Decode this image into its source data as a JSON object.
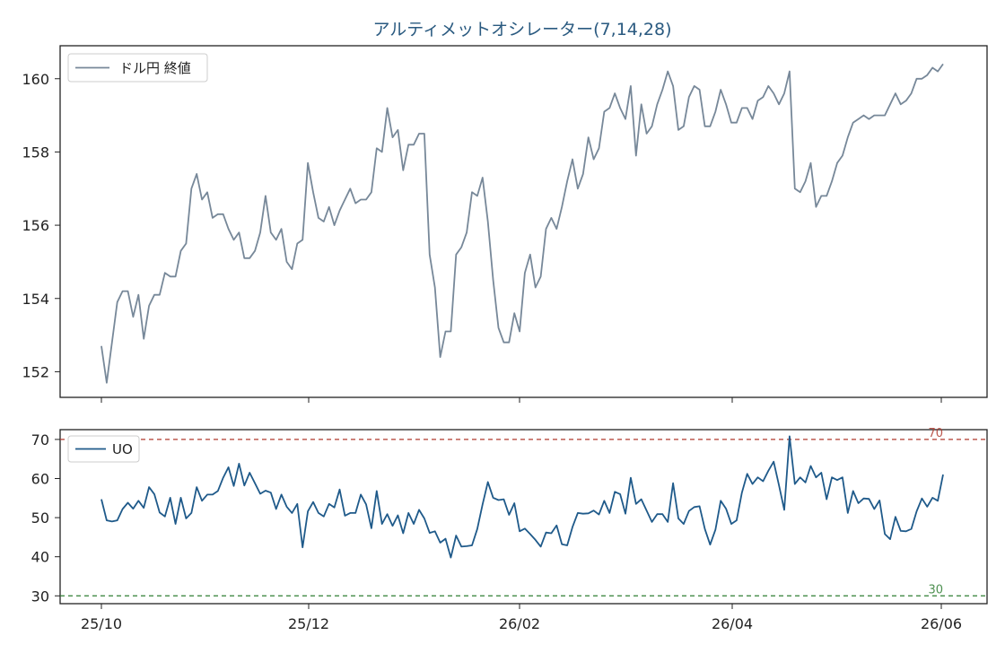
{
  "title": "アルティメットオシレーター(7,14,28)",
  "colors": {
    "price": "#778899",
    "uo": "#1f5a8a",
    "overbought": "#b03a2e",
    "oversold": "#2e7d32",
    "title": "#2a5a80",
    "axis": "#222222"
  },
  "chart_data": [
    {
      "type": "line",
      "panel": "price",
      "title": "アルティメットオシレーター(7,14,28)",
      "xlabel": "",
      "ylabel": "",
      "x_ticks": [
        "25/10",
        "25/12",
        "26/02",
        "26/04",
        "26/06"
      ],
      "y_ticks": [
        "152",
        "154",
        "156",
        "158",
        "160"
      ],
      "ylim": [
        151.3,
        160.9
      ],
      "legend": "top-left",
      "series": [
        {
          "name": "ドル円 終値",
          "values": [
            152.7,
            151.7,
            152.8,
            153.9,
            154.2,
            154.2,
            153.5,
            154.1,
            152.9,
            153.8,
            154.1,
            154.1,
            154.7,
            154.6,
            154.6,
            155.3,
            155.5,
            157.0,
            157.4,
            156.7,
            156.9,
            156.2,
            156.3,
            156.3,
            155.9,
            155.6,
            155.8,
            155.1,
            155.1,
            155.3,
            155.8,
            156.8,
            155.8,
            155.6,
            155.9,
            155.0,
            154.8,
            155.5,
            155.6,
            157.7,
            156.9,
            156.2,
            156.1,
            156.5,
            156.0,
            156.4,
            156.7,
            157.0,
            156.6,
            156.7,
            156.7,
            156.9,
            158.1,
            158.0,
            159.2,
            158.4,
            158.6,
            157.5,
            158.2,
            158.2,
            158.5,
            158.5,
            155.2,
            154.3,
            152.4,
            153.1,
            153.1,
            155.2,
            155.4,
            155.8,
            156.9,
            156.8,
            157.3,
            156.1,
            154.5,
            153.2,
            152.8,
            152.8,
            153.6,
            153.1,
            154.7,
            155.2,
            154.3,
            154.6,
            155.9,
            156.2,
            155.9,
            156.5,
            157.2,
            157.8,
            157.0,
            157.4,
            158.4,
            157.8,
            158.1,
            159.1,
            159.2,
            159.6,
            159.2,
            158.9,
            159.8,
            157.9,
            159.3,
            158.5,
            158.7,
            159.3,
            159.7,
            160.2,
            159.8,
            158.6,
            158.7,
            159.5,
            159.8,
            159.7,
            158.7,
            158.7,
            159.1,
            159.7,
            159.3,
            158.8,
            158.8,
            159.2,
            159.2,
            158.9,
            159.4,
            159.5,
            159.8,
            159.6,
            159.3,
            159.6,
            160.2,
            157.0,
            156.9,
            157.2,
            157.7,
            156.5,
            156.8,
            156.8,
            157.2,
            157.7,
            157.9,
            158.4,
            158.8,
            158.9,
            159.0,
            158.9,
            159.0,
            159.0,
            159.0,
            159.3,
            159.6,
            159.3,
            159.4,
            159.6,
            160.0,
            160.0,
            160.1,
            160.3,
            160.2,
            160.4
          ]
        }
      ]
    },
    {
      "type": "line",
      "panel": "oscillator",
      "xlabel": "",
      "ylabel": "",
      "x_ticks": [
        "25/10",
        "25/12",
        "26/02",
        "26/04",
        "26/06"
      ],
      "y_ticks": [
        "30",
        "40",
        "50",
        "60",
        "70"
      ],
      "ylim": [
        28,
        72.5
      ],
      "legend": "top-left",
      "reference_lines": [
        {
          "value": 70,
          "label": "70",
          "style": "dashed"
        },
        {
          "value": 30,
          "label": "30",
          "style": "dashed"
        }
      ],
      "series": [
        {
          "name": "UO",
          "values": [
            54.7,
            49.3,
            49.0,
            49.3,
            52.2,
            53.8,
            52.3,
            54.3,
            52.5,
            57.8,
            56.0,
            51.3,
            50.3,
            55.1,
            48.4,
            55.1,
            49.8,
            51.2,
            57.8,
            54.3,
            55.9,
            55.9,
            56.8,
            60.2,
            62.9,
            58.1,
            63.8,
            58.2,
            61.5,
            58.8,
            56.1,
            56.9,
            56.4,
            52.2,
            55.9,
            52.8,
            51.2,
            53.5,
            42.4,
            51.6,
            54.0,
            51.2,
            50.3,
            53.5,
            52.6,
            57.2,
            50.5,
            51.2,
            51.2,
            55.9,
            53.4,
            47.3,
            56.8,
            48.4,
            50.9,
            47.9,
            50.6,
            46.0,
            51.2,
            48.4,
            52.0,
            49.8,
            46.1,
            46.5,
            43.6,
            44.6,
            39.8,
            45.4,
            42.6,
            42.7,
            42.9,
            47.1,
            53.4,
            59.1,
            55.1,
            54.5,
            54.7,
            50.7,
            53.7,
            46.5,
            47.2,
            45.8,
            44.3,
            42.6,
            46.2,
            46.0,
            48.0,
            43.2,
            42.9,
            47.6,
            51.2,
            51.0,
            51.1,
            51.8,
            50.8,
            54.3,
            51.2,
            56.6,
            56.0,
            51.0,
            60.2,
            53.5,
            54.7,
            51.8,
            48.9,
            50.9,
            50.9,
            48.9,
            58.8,
            49.8,
            48.4,
            51.7,
            52.7,
            52.9,
            47.1,
            43.1,
            46.9,
            54.3,
            52.3,
            48.4,
            49.3,
            56.4,
            61.2,
            58.6,
            60.3,
            59.3,
            62.0,
            64.3,
            58.3,
            52.0,
            70.8,
            58.6,
            60.3,
            59.0,
            63.2,
            60.3,
            61.5,
            54.7,
            60.3,
            59.6,
            60.3,
            51.2,
            56.8,
            53.7,
            54.9,
            54.8,
            52.2,
            54.4,
            45.8,
            44.5,
            50.2,
            46.6,
            46.5,
            47.1,
            51.6,
            54.9,
            52.8,
            55.1,
            54.3,
            61.0
          ]
        }
      ]
    }
  ]
}
